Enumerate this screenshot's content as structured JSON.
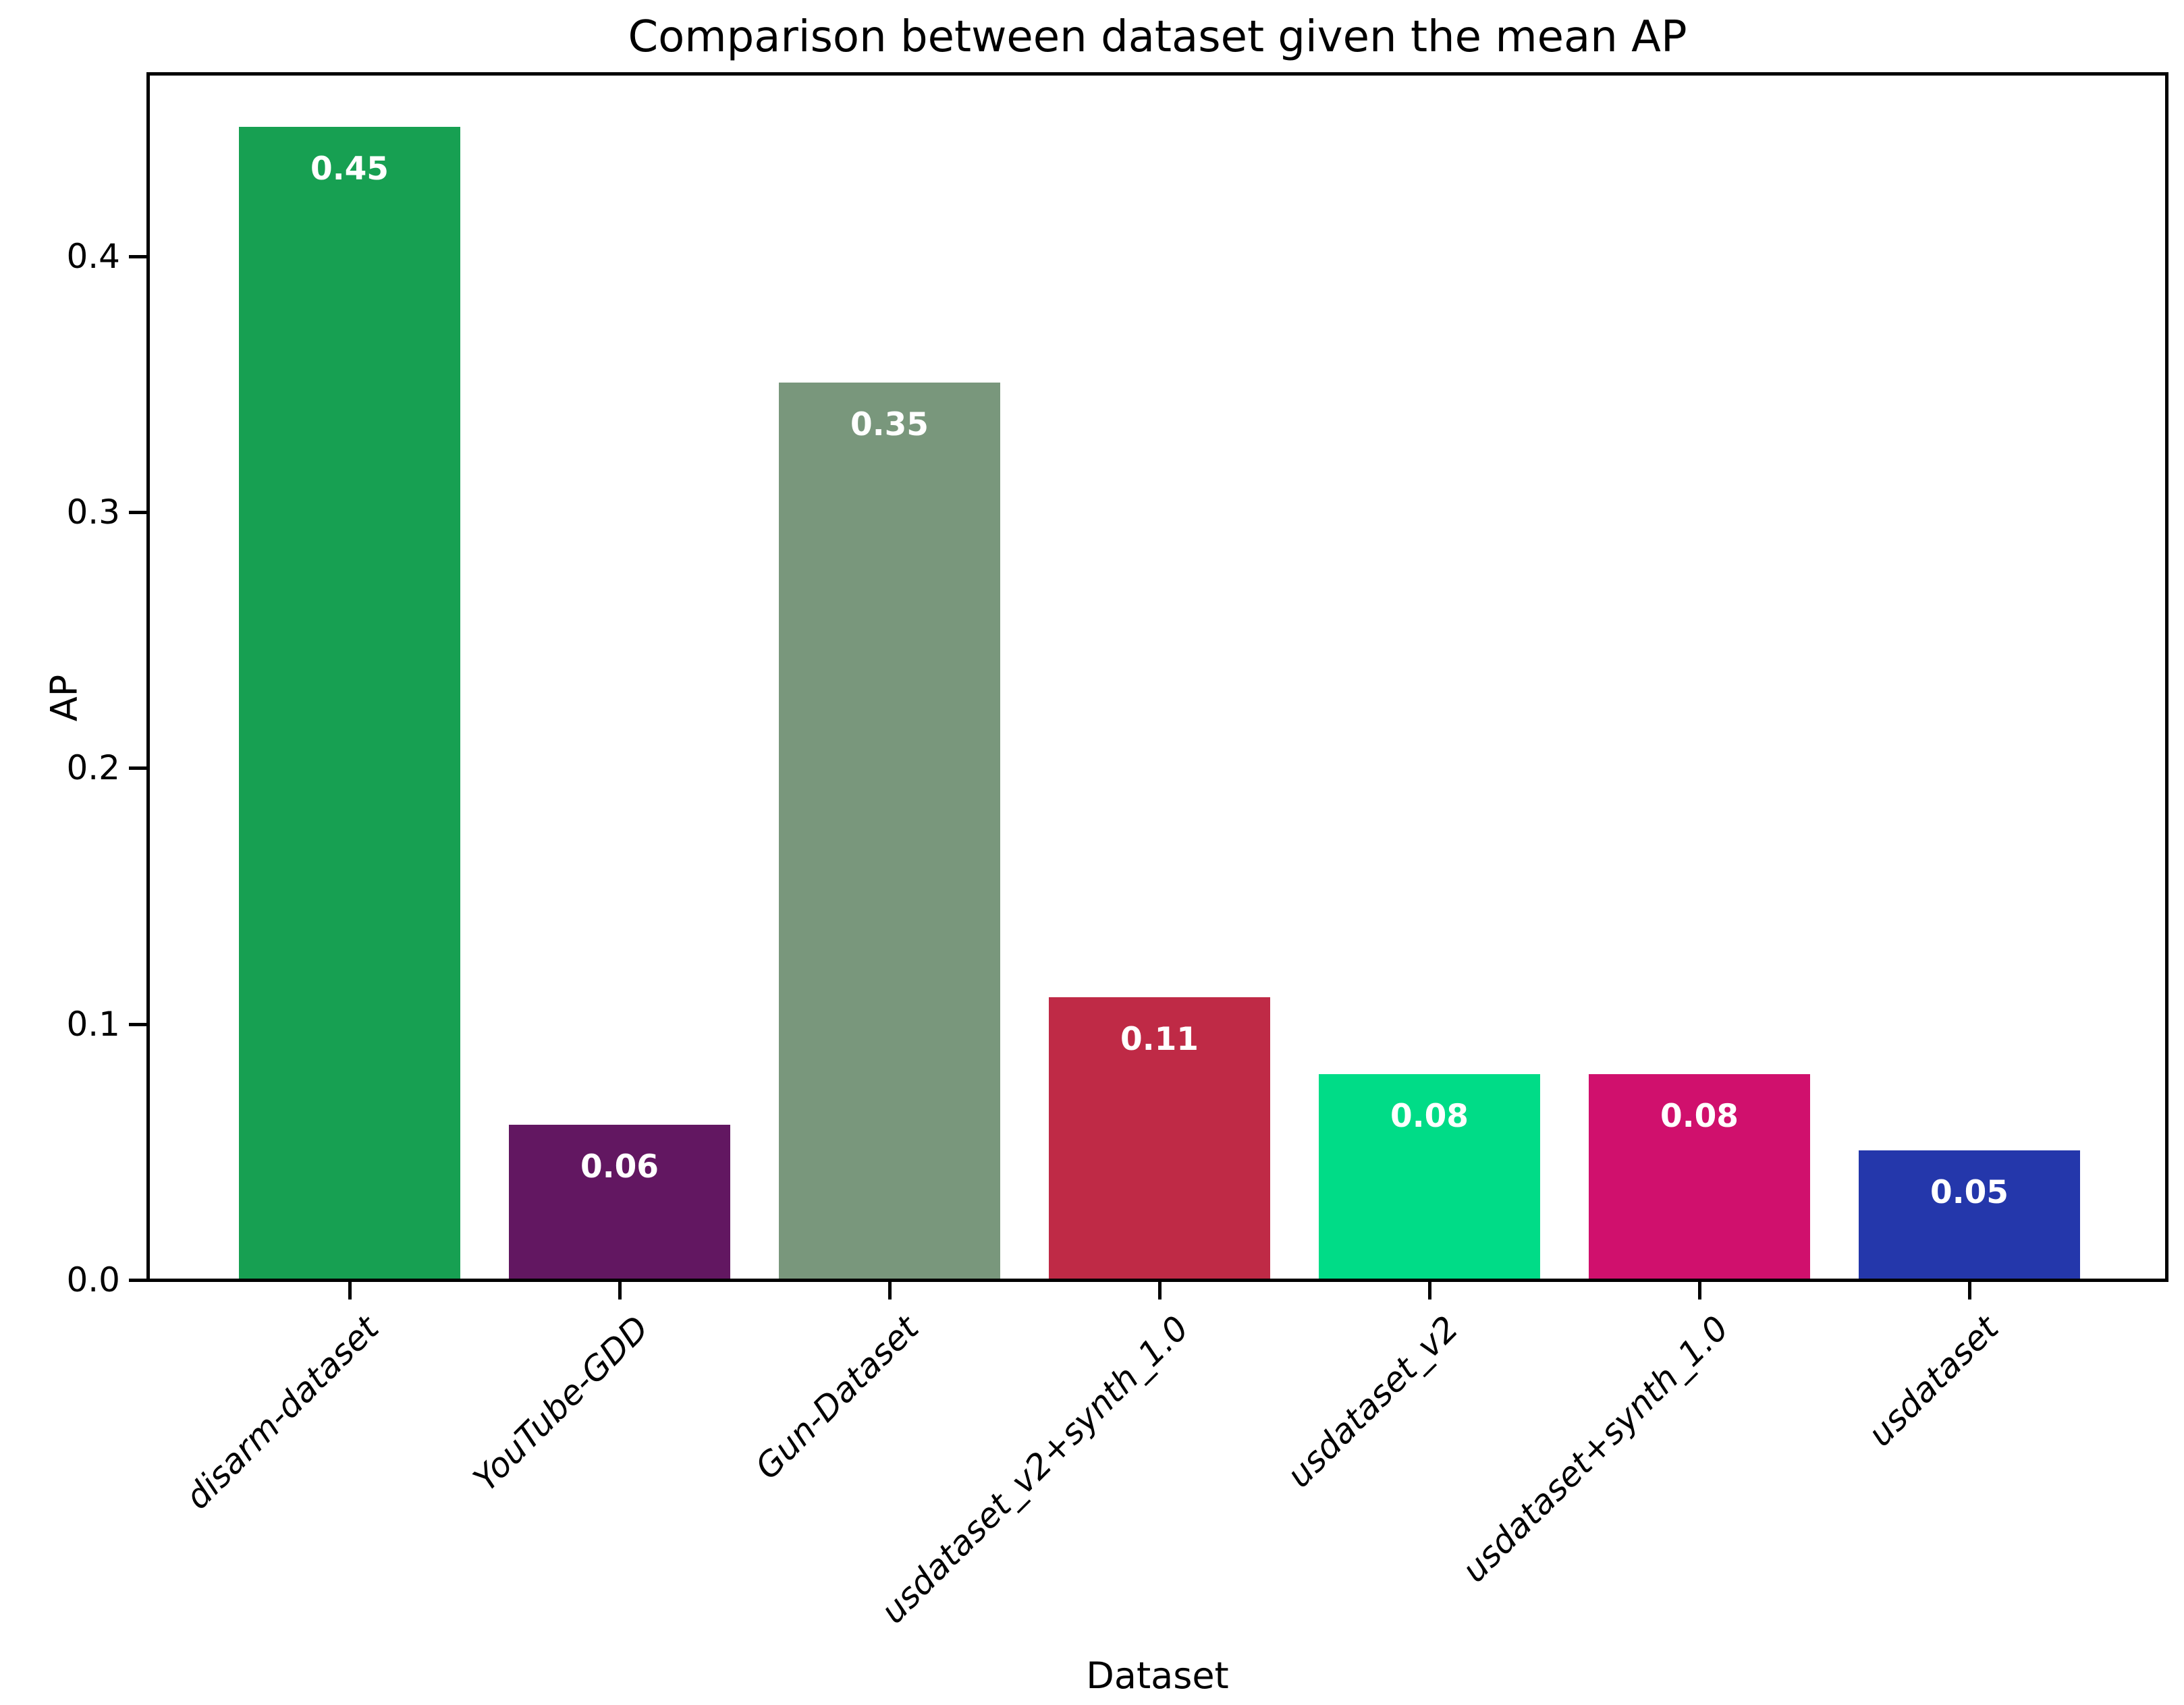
{
  "title": "Comparison between dataset given the mean AP",
  "chart_data": {
    "type": "bar",
    "title": "Comparison between dataset given the mean AP",
    "xlabel": "Dataset",
    "ylabel": "AP",
    "categories": [
      "disarm-dataset",
      "YouTube-GDD",
      "Gun-Dataset",
      "usdataset_v2+synth_1.0",
      "usdataset_v2",
      "usdataset+synth_1.0",
      "usdataset"
    ],
    "values": [
      0.45,
      0.06,
      0.35,
      0.11,
      0.08,
      0.08,
      0.05
    ],
    "value_labels": [
      "0.45",
      "0.06",
      "0.35",
      "0.11",
      "0.08",
      "0.08",
      "0.05"
    ],
    "bar_colors": [
      "#17a052",
      "#621761",
      "#79977c",
      "#bf2a46",
      "#00dc87",
      "#d0106d",
      "#2437ab"
    ],
    "ylim": [
      0,
      0.47
    ],
    "yticks": [
      0.0,
      0.1,
      0.2,
      0.3,
      0.4
    ],
    "ytick_labels": [
      "0.0",
      "0.1",
      "0.2",
      "0.3",
      "0.4"
    ],
    "grid": false,
    "legend": null,
    "bar_label_color": "#ffffff",
    "axis_color": "#000000"
  }
}
